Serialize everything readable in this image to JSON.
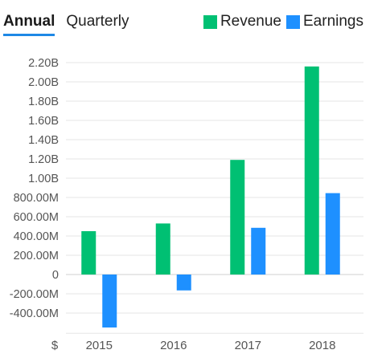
{
  "tabs": [
    {
      "label": "Annual",
      "active": true
    },
    {
      "label": "Quarterly",
      "active": false
    }
  ],
  "currency_symbol": "$",
  "colors": {
    "revenue": "#00c073",
    "earnings": "#1e90ff",
    "accent": "#1e88e5"
  },
  "chart_data": {
    "type": "bar",
    "categories": [
      "2015",
      "2016",
      "2017",
      "2018"
    ],
    "series": [
      {
        "name": "Revenue",
        "color": "#00c073",
        "values": [
          450000000,
          530000000,
          1190000000,
          2160000000
        ]
      },
      {
        "name": "Earnings",
        "color": "#1e90ff",
        "values": [
          -550000000,
          -165000000,
          485000000,
          845000000
        ]
      }
    ],
    "y_ticks": [
      {
        "value": 2200000000,
        "label": "2.20B"
      },
      {
        "value": 2000000000,
        "label": "2.00B"
      },
      {
        "value": 1800000000,
        "label": "1.80B"
      },
      {
        "value": 1600000000,
        "label": "1.60B"
      },
      {
        "value": 1400000000,
        "label": "1.40B"
      },
      {
        "value": 1200000000,
        "label": "1.20B"
      },
      {
        "value": 1000000000,
        "label": "1.00B"
      },
      {
        "value": 800000000,
        "label": "800.00M"
      },
      {
        "value": 600000000,
        "label": "600.00M"
      },
      {
        "value": 400000000,
        "label": "400.00M"
      },
      {
        "value": 200000000,
        "label": "200.00M"
      },
      {
        "value": 0,
        "label": "0"
      },
      {
        "value": -200000000,
        "label": "-200.00M"
      },
      {
        "value": -400000000,
        "label": "-400.00M"
      }
    ],
    "ylim": [
      -560000000,
      2200000000
    ],
    "grid": true,
    "legend_position": "top-right"
  }
}
